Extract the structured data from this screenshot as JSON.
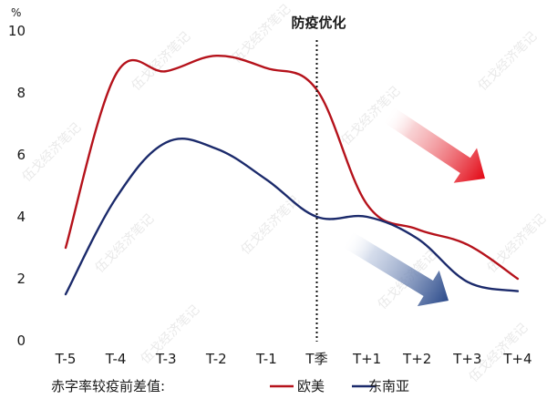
{
  "chart_data": {
    "type": "line",
    "unit": "%",
    "categories": [
      "T-5",
      "T-4",
      "T-3",
      "T-2",
      "T-1",
      "T季",
      "T+1",
      "T+2",
      "T+3",
      "T+4"
    ],
    "ylim": [
      0,
      10
    ],
    "yticks": [
      0,
      2,
      4,
      6,
      8,
      10
    ],
    "grid": false,
    "series": [
      {
        "name": "欧美",
        "color": "#b5121b",
        "values": [
          3.0,
          8.6,
          8.7,
          9.2,
          8.8,
          8.1,
          4.4,
          3.6,
          3.1,
          2.0
        ]
      },
      {
        "name": "东南亚",
        "color": "#1b2a6b",
        "values": [
          1.5,
          4.6,
          6.4,
          6.2,
          5.2,
          4.0,
          4.0,
          3.3,
          1.9,
          1.6
        ]
      }
    ],
    "annotation": {
      "label": "防疫优化",
      "at_category": "T季"
    },
    "legend": {
      "title": "赤字率较疫前差值:",
      "placement": "bottom"
    },
    "arrows": [
      {
        "series": "欧美",
        "color": "#d9101c",
        "direction": "down-right"
      },
      {
        "series": "东南亚",
        "color": "#2b4a8a",
        "direction": "down-right"
      }
    ]
  },
  "watermark": {
    "text": "伍戈经济笔记"
  }
}
